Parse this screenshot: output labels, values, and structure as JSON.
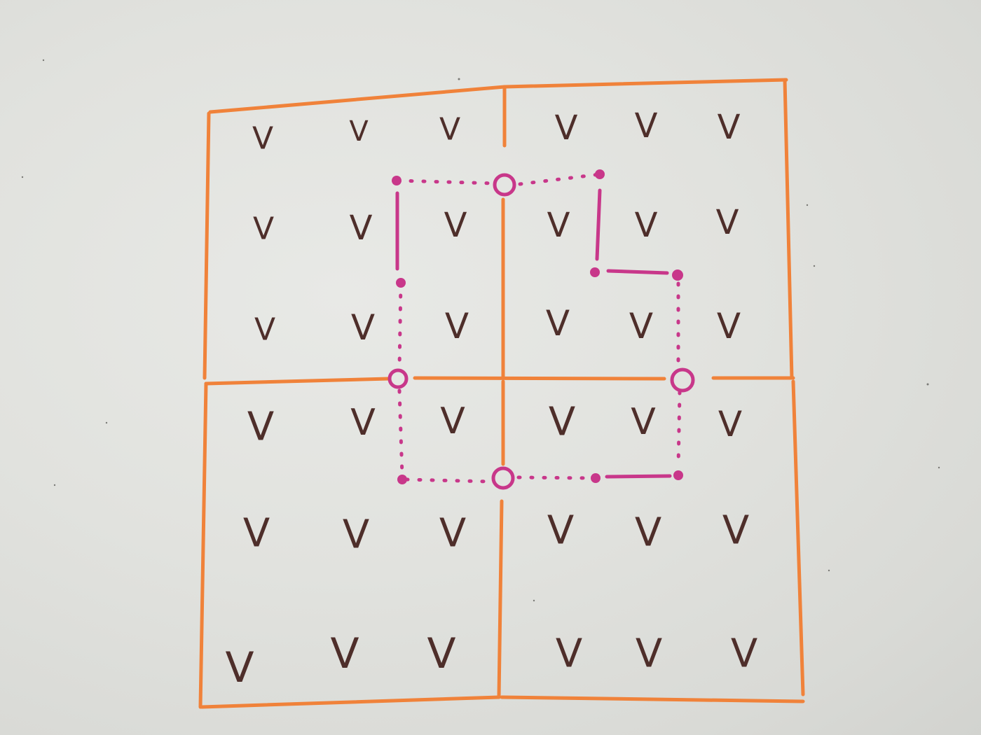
{
  "board": {
    "mark_text": "V",
    "grid_color": "#f0823a",
    "region_color": "#c8378a",
    "mark_color": "#4e2e2a",
    "grid_rows": 6,
    "grid_cols": 6,
    "blocks": "2x2"
  }
}
